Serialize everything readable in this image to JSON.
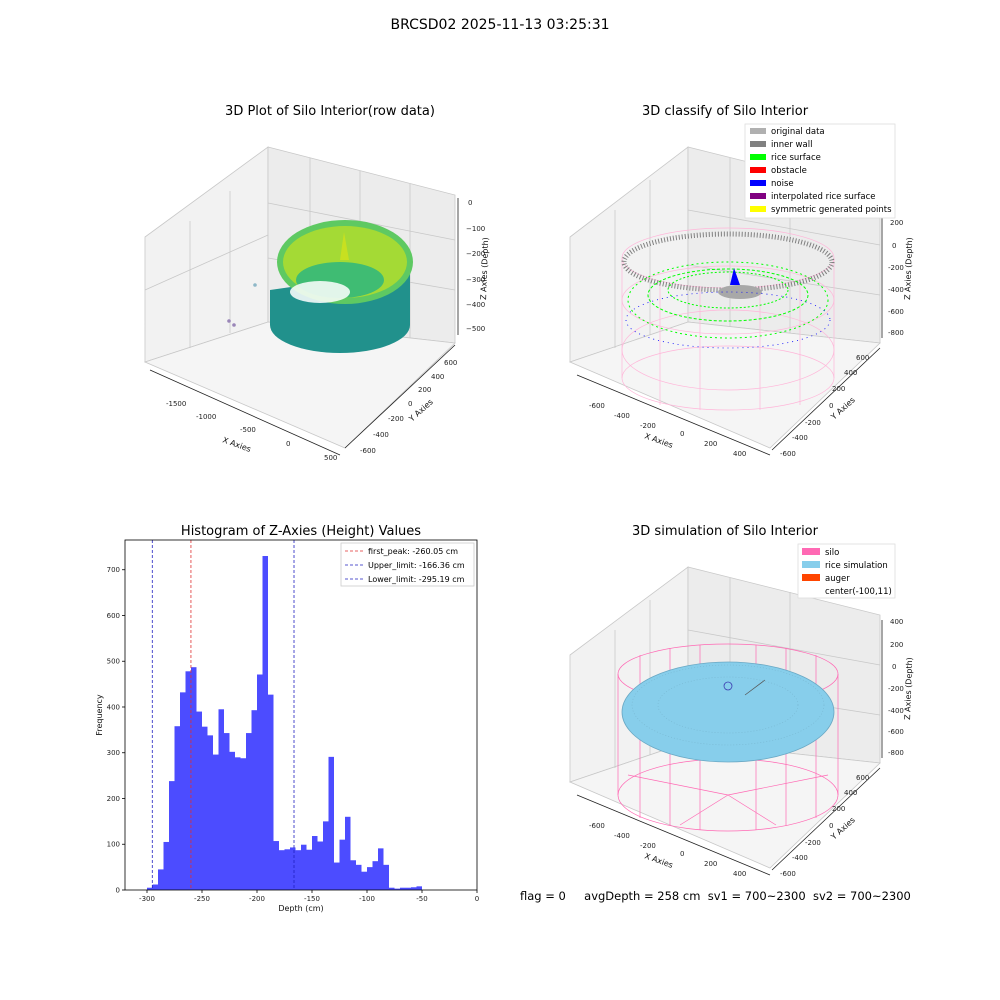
{
  "suptitle": "BRCSD02 2025-11-13 03:25:31",
  "footer": {
    "flag": "flag = 0",
    "avg_depth": "avgDepth = 258 cm",
    "sv1": "sv1 = 700~2300",
    "sv2": "sv2 = 700~2300"
  },
  "colors": {
    "hist_bar": "#4c4cff",
    "first_peak_line": "#e03030",
    "limit_line": "#2020c0",
    "silo": "#ff69b4",
    "rice_simulation": "#87ceeb",
    "auger": "#ff4500",
    "original_data": "#b0b0b0",
    "inner_wall": "#808080",
    "rice_surface": "#00ff00",
    "obstacle": "#ff0000",
    "noise": "#0000ff",
    "interpolated_rice_surface": "#800080",
    "symmetric_generated_points": "#ffff00"
  },
  "chart_data": [
    {
      "type": "scatter",
      "title": "3D Plot of Silo Interior(row data)",
      "xlabel": "X Axies",
      "ylabel": "Y Axies",
      "zlabel": "Z Axies (Depth)",
      "x_ticks": [
        "-1500",
        "-1000",
        "-500",
        "0",
        "500"
      ],
      "y_ticks": [
        "-600",
        "-400",
        "-200",
        "0",
        "200",
        "400",
        "600"
      ],
      "z_ticks": [
        "0",
        "−100",
        "−200",
        "−300",
        "−400",
        "−500"
      ],
      "colormap": "viridis"
    },
    {
      "type": "scatter",
      "title": "3D classify of Silo Interior",
      "xlabel": "X Axies",
      "ylabel": "Y Axies",
      "zlabel": "Z Axies (Depth)",
      "x_ticks": [
        "-600",
        "-400",
        "-200",
        "0",
        "200",
        "400"
      ],
      "y_ticks": [
        "-600",
        "-400",
        "-200",
        "0",
        "200",
        "400",
        "600"
      ],
      "z_ticks": [
        "200",
        "0",
        "-200",
        "-400",
        "-600",
        "-800"
      ],
      "legend": [
        "original data",
        "inner wall",
        "rice surface",
        "obstacle",
        "noise",
        "interpolated rice surface",
        "symmetric generated points"
      ],
      "legend_placement": "top-right"
    },
    {
      "type": "bar",
      "title": "Histogram of Z-Axies (Height) Values",
      "xlabel": "Depth (cm)",
      "ylabel": "Frequency",
      "xlim": [
        -320,
        0
      ],
      "ylim": [
        0,
        765
      ],
      "x_ticks": [
        "-300",
        "-250",
        "-200",
        "-150",
        "-100",
        "-50",
        "0"
      ],
      "y_ticks": [
        "0",
        "100",
        "200",
        "300",
        "400",
        "500",
        "600",
        "700"
      ],
      "bin_start": -300,
      "bin_width": 5,
      "values": [
        5,
        12,
        45,
        105,
        238,
        358,
        432,
        478,
        487,
        390,
        357,
        338,
        296,
        395,
        343,
        302,
        290,
        288,
        343,
        393,
        471,
        730,
        427,
        107,
        87,
        89,
        93,
        87,
        99,
        88,
        118,
        106,
        150,
        291,
        60,
        110,
        160,
        65,
        55,
        40,
        50,
        63,
        91,
        55,
        5,
        3,
        5,
        5,
        6,
        8
      ],
      "lines": [
        {
          "name": "first_peak: -260.05 cm",
          "x": -260.05
        },
        {
          "name": "Upper_limit: -166.36 cm",
          "x": -166.36
        },
        {
          "name": "Lower_limit: -295.19 cm",
          "x": -295.19
        }
      ],
      "legend_placement": "top-right"
    },
    {
      "type": "scatter",
      "title": "3D simulation of Silo Interior",
      "xlabel": "X Axies",
      "ylabel": "Y Axies",
      "zlabel": "Z Axies (Depth)",
      "x_ticks": [
        "-600",
        "-400",
        "-200",
        "0",
        "200",
        "400"
      ],
      "y_ticks": [
        "-600",
        "-400",
        "-200",
        "0",
        "200",
        "400",
        "600"
      ],
      "z_ticks": [
        "400",
        "200",
        "0",
        "-200",
        "-400",
        "-600",
        "-800"
      ],
      "legend": [
        "silo",
        "rice simulation",
        "auger",
        "center(-100,11)"
      ],
      "legend_placement": "top-right"
    }
  ]
}
